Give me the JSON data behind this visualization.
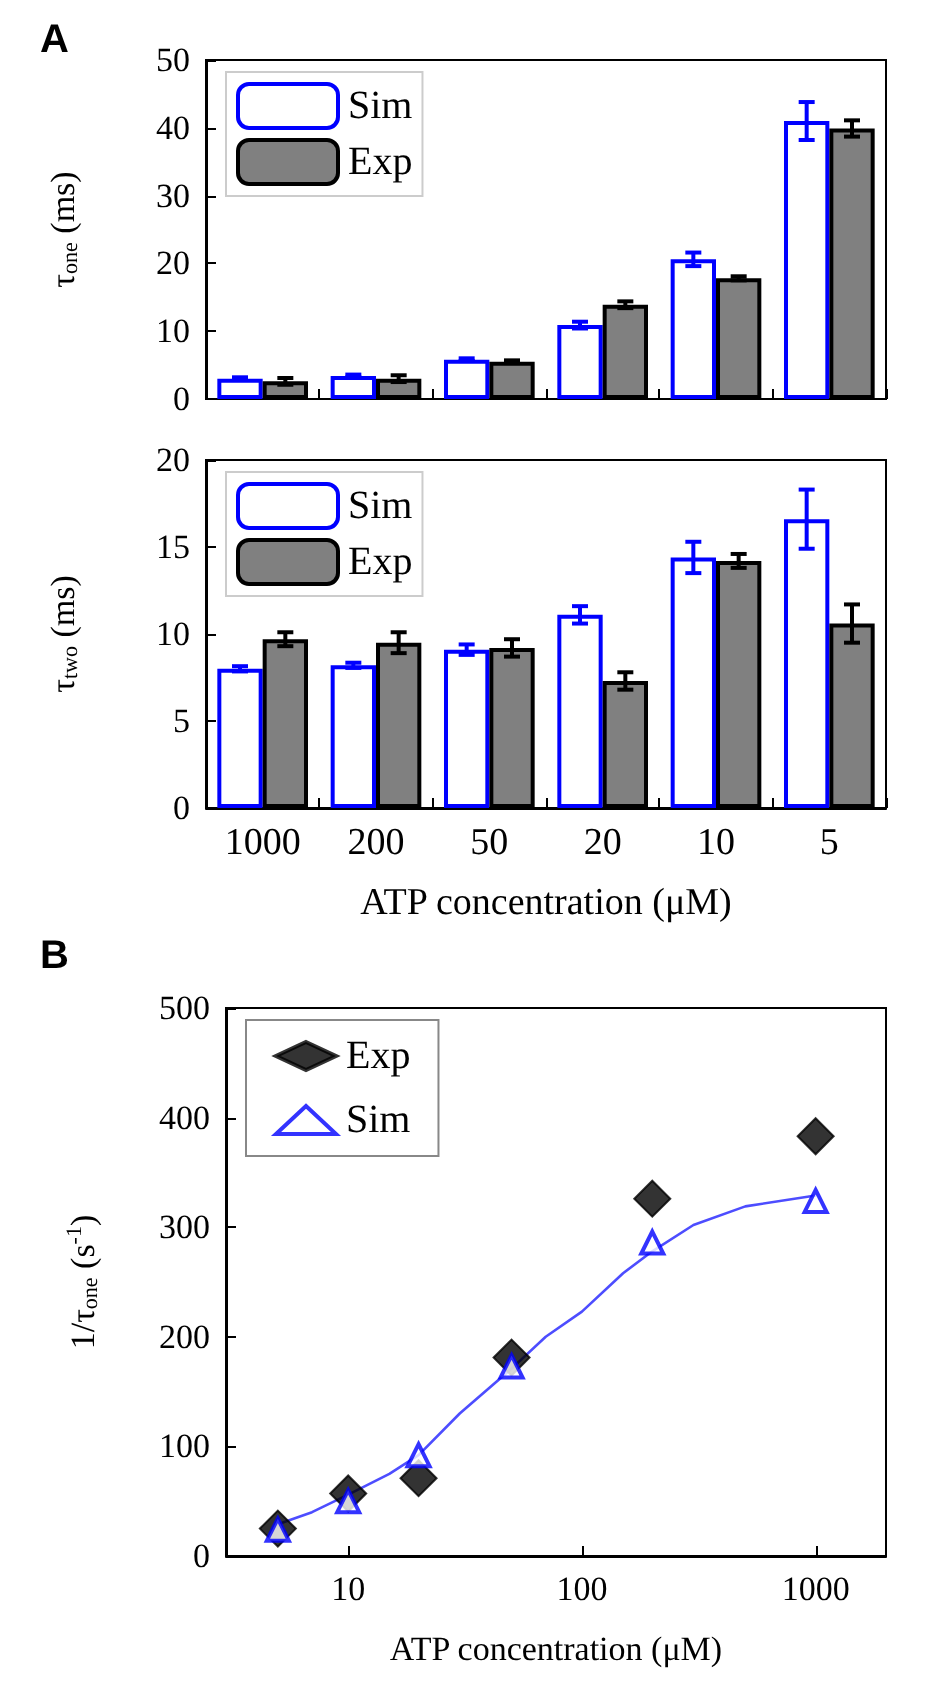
{
  "chart_data": [
    {
      "type": "bar",
      "annotations": [
        "A"
      ],
      "ylabel": "τ$_{one}$ (ms)",
      "categories": [
        "1000",
        "200",
        "50",
        "20",
        "10",
        "5"
      ],
      "ylim": [
        0,
        50
      ],
      "yticks": [
        0,
        10,
        20,
        30,
        40,
        50
      ],
      "tick_labels": "y",
      "legend": "top left",
      "grid": false,
      "series": [
        {
          "name": "Sim",
          "color": "#0000ff",
          "values": [
            3.0,
            3.4,
            5.8,
            10.9,
            20.6,
            41.0
          ],
          "errors": [
            0.2,
            0.2,
            0.2,
            0.5,
            1.0,
            2.8
          ]
        },
        {
          "name": "Exp",
          "color": "#808080",
          "values": [
            2.6,
            3.0,
            5.5,
            13.9,
            17.8,
            39.9
          ],
          "errors": [
            0.5,
            0.5,
            0.2,
            0.5,
            0.3,
            1.2
          ]
        }
      ]
    },
    {
      "type": "bar",
      "ylabel": "τ$_{two}$ (ms)",
      "xlabel": "ATP concentration (μM)",
      "categories": [
        "1000",
        "200",
        "50",
        "20",
        "10",
        "5"
      ],
      "ylim": [
        0,
        20
      ],
      "yticks": [
        0,
        5,
        10,
        15,
        20
      ],
      "legend": "top left",
      "grid": false,
      "series": [
        {
          "name": "Sim",
          "color": "#0000ff",
          "values": [
            8.0,
            8.2,
            9.1,
            11.1,
            14.4,
            16.6
          ],
          "errors": [
            0.15,
            0.15,
            0.3,
            0.5,
            0.9,
            1.7
          ]
        },
        {
          "name": "Exp",
          "color": "#808080",
          "values": [
            9.7,
            9.5,
            9.2,
            7.3,
            14.2,
            10.6
          ],
          "errors": [
            0.4,
            0.6,
            0.5,
            0.5,
            0.4,
            1.1
          ]
        }
      ]
    },
    {
      "type": "scatter",
      "annotations": [
        "B"
      ],
      "xlabel": "ATP concentration (μM)",
      "ylabel": "1/τ$_{one}$ (s$^{-1}$)",
      "log": "x",
      "xlim": [
        3,
        2000
      ],
      "xticks": [
        10,
        100,
        1000
      ],
      "ylim": [
        0,
        500
      ],
      "yticks": [
        0,
        100,
        200,
        300,
        400,
        500
      ],
      "legend": "top left",
      "grid": false,
      "series": [
        {
          "name": "Exp",
          "color": "#000000",
          "marker": "diamond",
          "x": [
            5,
            10,
            20,
            50,
            200,
            1000
          ],
          "values": [
            25,
            57,
            71,
            181,
            326,
            383
          ]
        },
        {
          "name": "Sim",
          "color": "#0000ff",
          "marker": "triangle",
          "x": [
            5,
            10,
            20,
            50,
            200,
            1000
          ],
          "values": [
            24,
            50,
            92,
            173,
            286,
            324
          ]
        },
        {
          "type": "line",
          "color": "#4d4dff",
          "marker": "none",
          "x": [
            5,
            7,
            10,
            15,
            20,
            30,
            50,
            70,
            100,
            150,
            200,
            300,
            500,
            1000
          ],
          "values": [
            29,
            40,
            56,
            75,
            92,
            130,
            171,
            200,
            223,
            258,
            278,
            302,
            319,
            329
          ]
        }
      ]
    }
  ]
}
